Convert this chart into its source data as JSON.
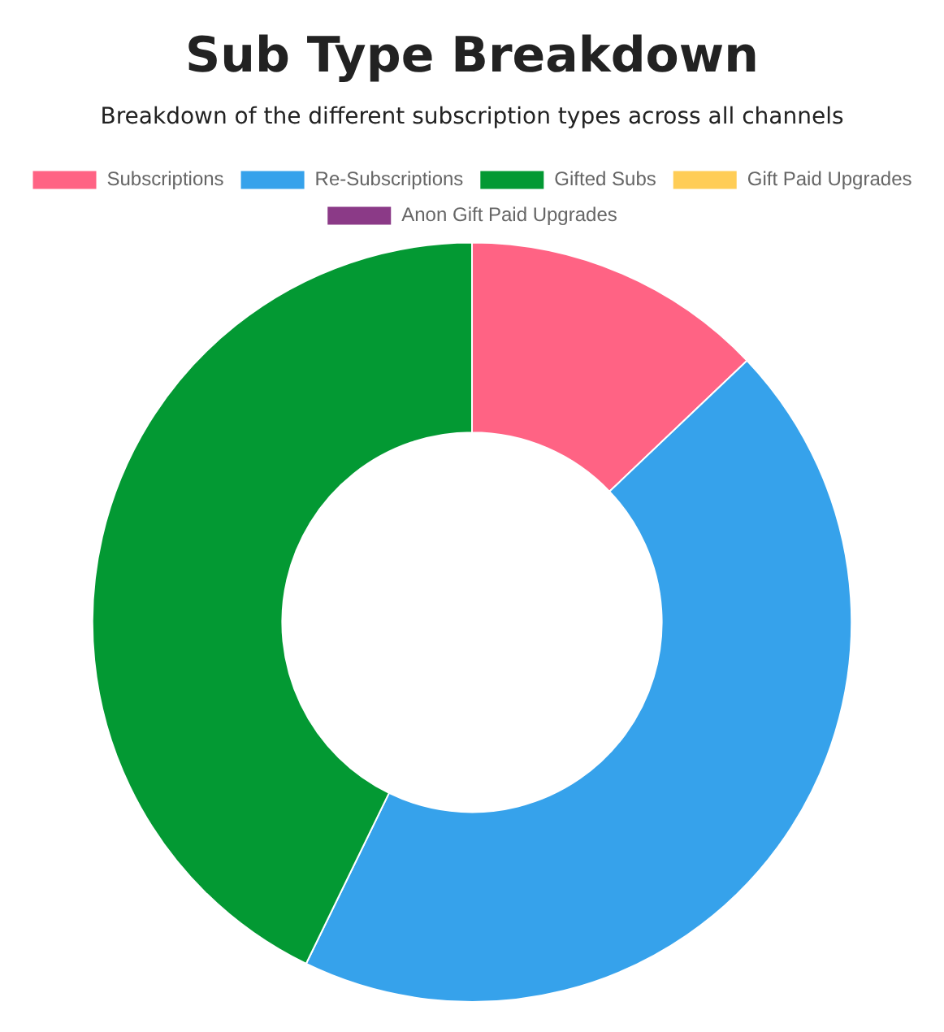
{
  "chart_data": {
    "type": "donut",
    "title": "Sub Type Breakdown",
    "subtitle": "Breakdown of the different subscription types across all channels",
    "categories": [
      "Subscriptions",
      "Re-Subscriptions",
      "Gifted Subs",
      "Gift Paid Upgrades",
      "Anon Gift Paid Upgrades"
    ],
    "values": [
      12.9,
      44.3,
      42.8,
      0,
      0
    ],
    "colors": [
      "#ff6384",
      "#36a2eb",
      "#039933",
      "#ffcd56",
      "#8b3a87"
    ],
    "legend": "top"
  }
}
